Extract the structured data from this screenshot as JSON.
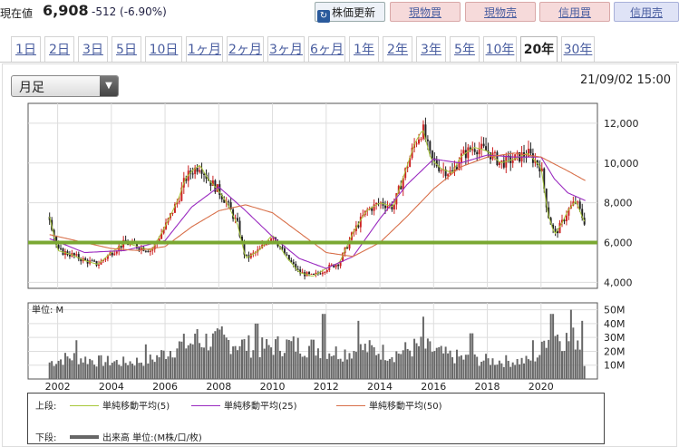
{
  "header": {
    "price_label": "現在値",
    "price_value": "6,908",
    "price_change": "-512 (-6.90%)",
    "buttons": {
      "refresh": "株価更新",
      "cash_buy": "現物買",
      "cash_sell": "現物売",
      "margin_buy": "信用買",
      "margin_sell": "信用売"
    }
  },
  "tabs": [
    "1日",
    "2日",
    "3日",
    "5日",
    "10日",
    "1ヶ月",
    "2ヶ月",
    "3ヶ月",
    "6ヶ月",
    "1年",
    "2年",
    "3年",
    "5年",
    "10年",
    "20年",
    "30年"
  ],
  "active_tab": "20年",
  "period_select": {
    "value": "月足"
  },
  "timestamp": "21/09/02 15:00",
  "colors": {
    "candle": "#cc2222",
    "ma5": "#a8c83a",
    "ma25": "#9a2ac0",
    "ma50": "#d8704a",
    "support": "#7aa832",
    "volume": "#666666"
  },
  "chart_data": [
    {
      "type": "candlestick-line",
      "title": "",
      "x_ticks": [
        "2002",
        "2004",
        "2006",
        "2008",
        "2010",
        "2012",
        "2014",
        "2016",
        "2018",
        "2020"
      ],
      "y_ticks": [
        "4,000",
        "6,000",
        "8,000",
        "10,000",
        "12,000"
      ],
      "ylim": [
        3700,
        13000
      ],
      "xlim": [
        2000.9,
        2022.1
      ],
      "grid": true,
      "close_series": [
        [
          2001.7,
          7300
        ],
        [
          2002.0,
          5600
        ],
        [
          2002.5,
          5400
        ],
        [
          2003.0,
          5100
        ],
        [
          2003.5,
          4900
        ],
        [
          2004.0,
          5500
        ],
        [
          2004.5,
          6000
        ],
        [
          2005.0,
          5800
        ],
        [
          2005.5,
          5600
        ],
        [
          2006.0,
          6800
        ],
        [
          2006.5,
          8200
        ],
        [
          2006.75,
          9200
        ],
        [
          2007.0,
          9600
        ],
        [
          2007.3,
          9900
        ],
        [
          2007.6,
          9200
        ],
        [
          2008.0,
          8600
        ],
        [
          2008.3,
          8000
        ],
        [
          2008.7,
          6900
        ],
        [
          2009.0,
          5200
        ],
        [
          2009.5,
          5600
        ],
        [
          2010.0,
          6400
        ],
        [
          2010.5,
          5300
        ],
        [
          2011.0,
          4500
        ],
        [
          2011.5,
          4300
        ],
        [
          2012.0,
          4700
        ],
        [
          2012.5,
          5000
        ],
        [
          2013.0,
          6500
        ],
        [
          2013.5,
          7600
        ],
        [
          2014.0,
          8000
        ],
        [
          2014.5,
          7800
        ],
        [
          2015.0,
          9800
        ],
        [
          2015.3,
          11000
        ],
        [
          2015.6,
          11700
        ],
        [
          2015.9,
          10200
        ],
        [
          2016.3,
          9700
        ],
        [
          2016.7,
          9500
        ],
        [
          2017.0,
          10300
        ],
        [
          2017.5,
          10800
        ],
        [
          2018.0,
          10600
        ],
        [
          2018.5,
          10000
        ],
        [
          2019.0,
          10200
        ],
        [
          2019.5,
          10500
        ],
        [
          2020.0,
          9800
        ],
        [
          2020.25,
          7500
        ],
        [
          2020.5,
          6400
        ],
        [
          2020.75,
          6900
        ],
        [
          2021.0,
          7600
        ],
        [
          2021.3,
          8100
        ],
        [
          2021.5,
          7400
        ],
        [
          2021.67,
          6908
        ]
      ],
      "series": [
        {
          "name": "単純移動平均(25)",
          "points": [
            [
              2001.7,
              6200
            ],
            [
              2003.0,
              5500
            ],
            [
              2004.5,
              5600
            ],
            [
              2006.0,
              6100
            ],
            [
              2007.0,
              7800
            ],
            [
              2008.0,
              8800
            ],
            [
              2009.0,
              7600
            ],
            [
              2010.0,
              6300
            ],
            [
              2011.0,
              5200
            ],
            [
              2012.0,
              4700
            ],
            [
              2013.0,
              5300
            ],
            [
              2014.0,
              7200
            ],
            [
              2015.0,
              8900
            ],
            [
              2016.0,
              10200
            ],
            [
              2017.0,
              10000
            ],
            [
              2018.0,
              10400
            ],
            [
              2019.0,
              10300
            ],
            [
              2020.0,
              10300
            ],
            [
              2020.5,
              9200
            ],
            [
              2021.0,
              8500
            ],
            [
              2021.67,
              8100
            ]
          ]
        },
        {
          "name": "単純移動平均(50)",
          "points": [
            [
              2001.7,
              6400
            ],
            [
              2003.0,
              6000
            ],
            [
              2004.0,
              5700
            ],
            [
              2005.0,
              5600
            ],
            [
              2006.0,
              5800
            ],
            [
              2007.0,
              6800
            ],
            [
              2008.0,
              7600
            ],
            [
              2009.0,
              7900
            ],
            [
              2010.0,
              7500
            ],
            [
              2011.0,
              6500
            ],
            [
              2012.0,
              5500
            ],
            [
              2013.0,
              5300
            ],
            [
              2014.0,
              6000
            ],
            [
              2015.0,
              7300
            ],
            [
              2016.0,
              8700
            ],
            [
              2017.0,
              9800
            ],
            [
              2018.0,
              10300
            ],
            [
              2019.0,
              10500
            ],
            [
              2020.0,
              10300
            ],
            [
              2021.0,
              9600
            ],
            [
              2021.67,
              9100
            ]
          ]
        }
      ],
      "support_level": 6000
    },
    {
      "type": "bar",
      "title": "",
      "unit_label": "単位: M",
      "y_ticks": [
        "10M",
        "20M",
        "30M",
        "40M",
        "50M"
      ],
      "ylim": [
        0,
        55
      ],
      "volume_profile": [
        [
          2001.7,
          12
        ],
        [
          2002.5,
          16
        ],
        [
          2003.5,
          13
        ],
        [
          2004.5,
          12
        ],
        [
          2005.5,
          14
        ],
        [
          2006.5,
          24
        ],
        [
          2007.5,
          28
        ],
        [
          2008.5,
          27
        ],
        [
          2009.5,
          22
        ],
        [
          2010.5,
          25
        ],
        [
          2011.5,
          23
        ],
        [
          2012.5,
          19
        ],
        [
          2013.5,
          22
        ],
        [
          2014.5,
          18
        ],
        [
          2015.5,
          24
        ],
        [
          2016.5,
          17
        ],
        [
          2017.5,
          14
        ],
        [
          2018.5,
          13
        ],
        [
          2019.5,
          13
        ],
        [
          2020.0,
          19
        ],
        [
          2020.3,
          38
        ],
        [
          2020.6,
          32
        ],
        [
          2021.0,
          28
        ],
        [
          2021.4,
          30
        ],
        [
          2021.67,
          10
        ]
      ],
      "peaks": [
        [
          2002.7,
          28
        ],
        [
          2005.3,
          25
        ],
        [
          2007.2,
          36
        ],
        [
          2008.1,
          38
        ],
        [
          2009.4,
          40
        ],
        [
          2011.9,
          47
        ],
        [
          2013.2,
          42
        ],
        [
          2015.6,
          45
        ],
        [
          2017.4,
          33
        ],
        [
          2019.7,
          28
        ],
        [
          2020.4,
          47
        ],
        [
          2021.1,
          50
        ],
        [
          2021.5,
          42
        ]
      ]
    }
  ],
  "legend": {
    "top_label": "上段:",
    "ma5": "単純移動平均(5)",
    "ma25": "単純移動平均(25)",
    "ma50": "単純移動平均(50)",
    "bottom_label": "下段:",
    "volume": "出来高 単位:(M株/口/枚)"
  }
}
